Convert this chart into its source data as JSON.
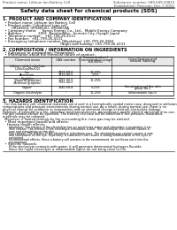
{
  "bg_color": "#ffffff",
  "header_left": "Product name: Lithium Ion Battery Cell",
  "header_right_l1": "Substance number: 589-049-00815",
  "header_right_l2": "Established / Revision: Dec.7.2010",
  "title": "Safety data sheet for chemical products (SDS)",
  "s1_title": "1. PRODUCT AND COMPANY IDENTIFICATION",
  "s1_lines": [
    "  • Product name: Lithium Ion Battery Cell",
    "  • Product code: Cylindrical type cell",
    "        UR18650J, UR18650U, UR18650A",
    "  • Company name:     Sanyo Energy Co., Ltd.,  Mobile Energy Company",
    "  • Address:              2001  Kamitodaka,  Sumoto City, Hyogo, Japan",
    "  • Telephone number:   +81-799-26-4111",
    "  • Fax number:  +81-799-26-4131",
    "  • Emergency telephone number (Weekdays) +81-799-26-3962",
    "                                                    (Night and holiday) +81-799-26-4131"
  ],
  "s2_title": "2. COMPOSITION / INFORMATION ON INGREDIENTS",
  "s2_sub1": "  • Substance or preparation: Preparation",
  "s2_sub2": "  • Information about the chemical nature of product:",
  "tbl_h": [
    "Chemical name",
    "CAS number",
    "Concentration /\nConcentration range\n(50-80%)",
    "Classification and\nhazard labeling"
  ],
  "tbl_rows": [
    [
      "Lithium nickel cobaltate\n(LiNixCoyMnzO2)",
      "-",
      "",
      ""
    ],
    [
      "Iron",
      "7439-89-6",
      "10-25%",
      "-"
    ],
    [
      "Aluminum",
      "7429-90-5",
      "2-5%",
      "-"
    ],
    [
      "Graphite\n(Natural graphite)\n(Artificial graphite)",
      "7782-42-5\n7782-44-0",
      "10-25%",
      "-"
    ],
    [
      "Copper",
      "7440-50-8",
      "5-15%",
      "Sensitization of the skin\ngroup No.2"
    ],
    [
      "Organic electrolyte",
      "-",
      "10-25%",
      "Inflammable liquid"
    ]
  ],
  "s3_title": "3. HAZARDS IDENTIFICATION",
  "s3_body": [
    "  For this battery cell, chemical materials are stored in a hermetically sealed metal case, designed to withstand",
    "temperatures and pressure environments during normal use. As a result, during normal use, there is no",
    "physical change by oxidation or evaporation and no chemical change or battery electrolyte leakage.",
    "However, if exposed to a fire, abnormal mechanical shocks, decomposed, and/or electric abnormal miss use,",
    "the gas release cannot be operated. The battery cell case will be breached if the pressure, hazardous",
    "materials may be released.",
    "  Moreover, if heated strongly by the surrounding fire, toxic gas may be emitted."
  ],
  "s3_b1": "  • Most important hazard and effects:",
  "s3_human": "    Human health effects:",
  "s3_human_lines": [
    "       Inhalation: The release of the electrolyte has an anesthesia action and stimulates a respiratory tract.",
    "       Skin contact: The release of the electrolyte stimulates a skin. The electrolyte skin contact causes a",
    "       sore and stimulation on the skin.",
    "       Eye contact: The release of the electrolyte stimulates eyes. The electrolyte eye contact causes a sore",
    "       and stimulation on the eye. Especially, a substance that causes a strong inflammation of the eyes is",
    "       contained.",
    "       Environmental effects: Since a battery cell remains in the environment, do not throw out it into the",
    "       environment."
  ],
  "s3_specific": "  • Specific hazards:",
  "s3_specific_lines": [
    "      If the electrolyte contacts with water, it will generate detrimental hydrogen fluoride.",
    "      Since the liquid electrolyte is inflammable liquid, do not bring close to fire."
  ]
}
